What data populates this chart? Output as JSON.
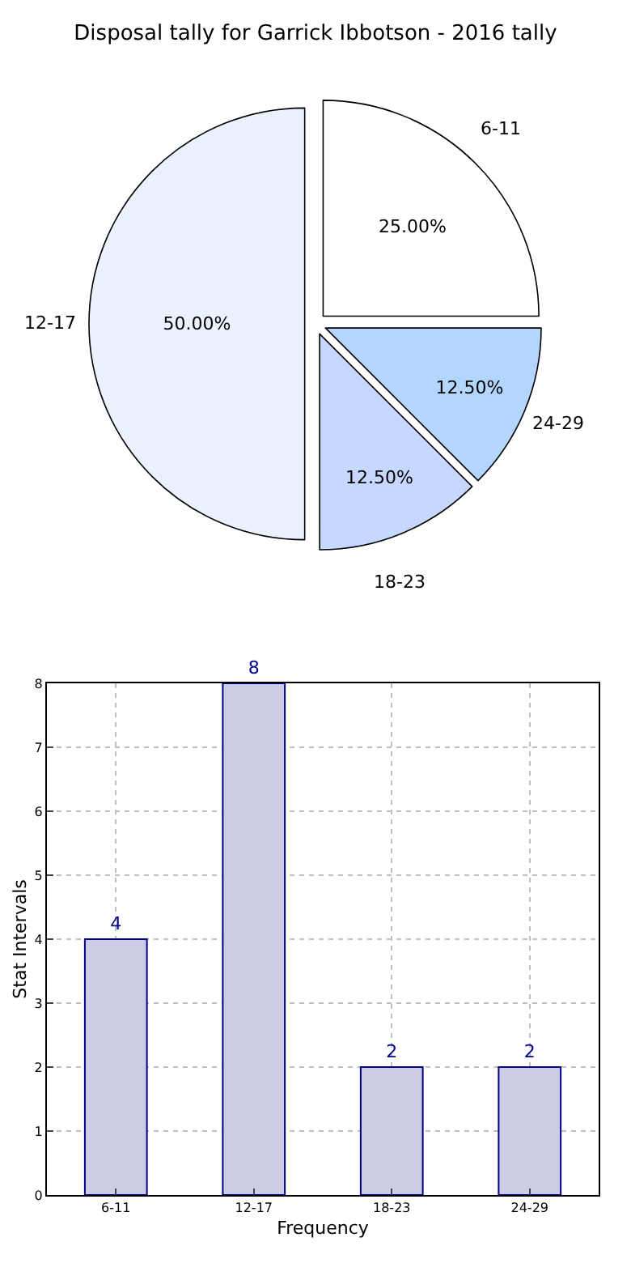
{
  "chart_data": [
    {
      "type": "pie",
      "title": "Disposal tally for Garrick Ibbotson - 2016 tally",
      "categories": [
        "6-11",
        "12-17",
        "18-23",
        "24-29"
      ],
      "values": [
        25,
        50,
        12.5,
        12.5
      ],
      "value_labels": [
        "25.00%",
        "50.00%",
        "12.50%",
        "12.50%"
      ],
      "colors": [
        "#ffffff",
        "#eaf1ff",
        "#c6d8ff",
        "#b3d6ff"
      ]
    },
    {
      "type": "bar",
      "categories": [
        "6-11",
        "12-17",
        "18-23",
        "24-29"
      ],
      "values": [
        4,
        8,
        2,
        2
      ],
      "color": "#ccccE5",
      "xlabel": "Frequency",
      "ylabel": "Stat Intervals",
      "ylim": [
        0,
        8
      ],
      "yticks": [
        0,
        1,
        2,
        3,
        4,
        5,
        6,
        7,
        8
      ],
      "grid": true,
      "data_labels": true
    }
  ]
}
